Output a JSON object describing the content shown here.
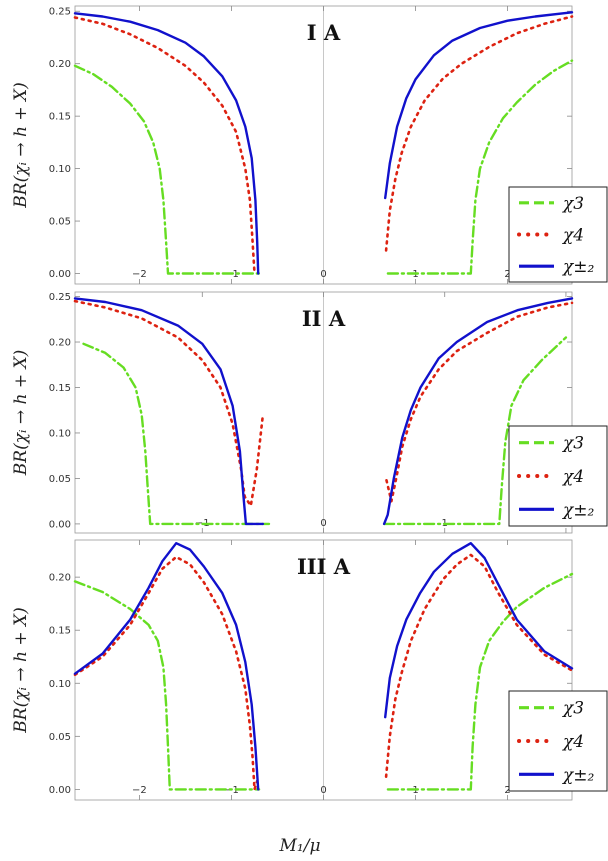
{
  "figure": {
    "xlabel": "M₁/μ",
    "ylabel": "BR(χᵢ → h + X)"
  },
  "legend": [
    {
      "label": "χ3",
      "color": "#66dd22",
      "style": "dashed"
    },
    {
      "label": "χ4",
      "color": "#dd2211",
      "style": "dotted"
    },
    {
      "label": "χ±₂",
      "color": "#1111cc",
      "style": "solid"
    }
  ],
  "chart_data": [
    {
      "type": "line",
      "title": "I A",
      "xlim": [
        -2.7,
        2.7
      ],
      "ylim": [
        -0.01,
        0.255
      ],
      "xticks": [
        -2,
        -1,
        0,
        1,
        2
      ],
      "xtick_labels": [
        "−2",
        "−1",
        "0",
        "1",
        "2"
      ],
      "yticks": [
        0.0,
        0.05,
        0.1,
        0.15,
        0.2,
        0.25
      ],
      "ytick_labels": [
        "0.00",
        "0.05",
        "0.10",
        "0.15",
        "0.20",
        "0.25"
      ],
      "series": [
        {
          "name": "χ3",
          "color": "#66dd22",
          "dash": "10,4,2,4",
          "segments": [
            [
              [
                -2.7,
                0.198
              ],
              [
                -2.5,
                0.19
              ],
              [
                -2.3,
                0.178
              ],
              [
                -2.1,
                0.162
              ],
              [
                -1.95,
                0.145
              ],
              [
                -1.85,
                0.125
              ],
              [
                -1.78,
                0.1
              ],
              [
                -1.74,
                0.07
              ],
              [
                -1.71,
                0.03
              ],
              [
                -1.69,
                0.0
              ],
              [
                -0.7,
                0.0
              ]
            ],
            [
              [
                0.7,
                0.0
              ],
              [
                1.6,
                0.0
              ],
              [
                1.62,
                0.03
              ],
              [
                1.65,
                0.07
              ],
              [
                1.7,
                0.1
              ],
              [
                1.8,
                0.125
              ],
              [
                1.95,
                0.148
              ],
              [
                2.1,
                0.163
              ],
              [
                2.3,
                0.18
              ],
              [
                2.5,
                0.193
              ],
              [
                2.7,
                0.203
              ]
            ]
          ]
        },
        {
          "name": "χ4",
          "color": "#dd2211",
          "dash": "2,5",
          "segments": [
            [
              [
                -2.7,
                0.244
              ],
              [
                -2.4,
                0.238
              ],
              [
                -2.1,
                0.228
              ],
              [
                -1.8,
                0.215
              ],
              [
                -1.5,
                0.198
              ],
              [
                -1.3,
                0.182
              ],
              [
                -1.1,
                0.16
              ],
              [
                -0.95,
                0.135
              ],
              [
                -0.85,
                0.1
              ],
              [
                -0.8,
                0.07
              ],
              [
                -0.77,
                0.03
              ],
              [
                -0.75,
                0.0
              ]
            ],
            [
              [
                0.68,
                0.022
              ],
              [
                0.72,
                0.06
              ],
              [
                0.78,
                0.09
              ],
              [
                0.85,
                0.115
              ],
              [
                0.95,
                0.14
              ],
              [
                1.1,
                0.165
              ],
              [
                1.3,
                0.186
              ],
              [
                1.5,
                0.2
              ],
              [
                1.8,
                0.216
              ],
              [
                2.1,
                0.229
              ],
              [
                2.4,
                0.238
              ],
              [
                2.7,
                0.245
              ]
            ]
          ]
        },
        {
          "name": "χ±₂",
          "color": "#1111cc",
          "dash": "",
          "segments": [
            [
              [
                -2.7,
                0.248
              ],
              [
                -2.4,
                0.245
              ],
              [
                -2.1,
                0.24
              ],
              [
                -1.8,
                0.232
              ],
              [
                -1.5,
                0.22
              ],
              [
                -1.3,
                0.207
              ],
              [
                -1.1,
                0.188
              ],
              [
                -0.95,
                0.165
              ],
              [
                -0.85,
                0.14
              ],
              [
                -0.78,
                0.11
              ],
              [
                -0.74,
                0.07
              ],
              [
                -0.72,
                0.03
              ],
              [
                -0.71,
                0.0
              ]
            ],
            [
              [
                0.67,
                0.072
              ],
              [
                0.72,
                0.105
              ],
              [
                0.8,
                0.14
              ],
              [
                0.9,
                0.167
              ],
              [
                1.0,
                0.185
              ],
              [
                1.2,
                0.208
              ],
              [
                1.4,
                0.222
              ],
              [
                1.7,
                0.234
              ],
              [
                2.0,
                0.241
              ],
              [
                2.3,
                0.245
              ],
              [
                2.7,
                0.249
              ]
            ]
          ]
        }
      ]
    },
    {
      "type": "line",
      "title": "II A",
      "xlim": [
        -2.05,
        2.05
      ],
      "ylim": [
        -0.01,
        0.255
      ],
      "xticks": [
        -1,
        0,
        1,
        2
      ],
      "xtick_labels": [
        "−1",
        "0",
        "1",
        "2"
      ],
      "yticks": [
        0.0,
        0.05,
        0.1,
        0.15,
        0.2,
        0.25
      ],
      "ytick_labels": [
        "0.00",
        "0.05",
        "0.10",
        "0.15",
        "0.20",
        "0.25"
      ],
      "series": [
        {
          "name": "χ3",
          "color": "#66dd22",
          "dash": "10,4,2,4",
          "segments": [
            [
              [
                -1.98,
                0.198
              ],
              [
                -1.8,
                0.188
              ],
              [
                -1.65,
                0.172
              ],
              [
                -1.55,
                0.15
              ],
              [
                -1.5,
                0.12
              ],
              [
                -1.47,
                0.08
              ],
              [
                -1.45,
                0.04
              ],
              [
                -1.43,
                0.0
              ],
              [
                -0.45,
                0.0
              ]
            ],
            [
              [
                0.5,
                0.0
              ],
              [
                1.45,
                0.0
              ],
              [
                1.47,
                0.04
              ],
              [
                1.5,
                0.09
              ],
              [
                1.55,
                0.13
              ],
              [
                1.65,
                0.158
              ],
              [
                1.8,
                0.18
              ],
              [
                2.0,
                0.205
              ]
            ]
          ]
        },
        {
          "name": "χ4",
          "color": "#dd2211",
          "dash": "2,5",
          "segments": [
            [
              [
                -2.05,
                0.245
              ],
              [
                -1.8,
                0.238
              ],
              [
                -1.5,
                0.226
              ],
              [
                -1.2,
                0.205
              ],
              [
                -1.0,
                0.18
              ],
              [
                -0.85,
                0.15
              ],
              [
                -0.75,
                0.11
              ],
              [
                -0.68,
                0.06
              ],
              [
                -0.65,
                0.03
              ],
              [
                -0.6,
                0.02
              ],
              [
                -0.55,
                0.06
              ],
              [
                -0.5,
                0.12
              ]
            ],
            [
              [
                0.52,
                0.048
              ],
              [
                0.56,
                0.025
              ],
              [
                0.6,
                0.05
              ],
              [
                0.65,
                0.085
              ],
              [
                0.72,
                0.115
              ],
              [
                0.8,
                0.14
              ],
              [
                0.95,
                0.17
              ],
              [
                1.1,
                0.19
              ],
              [
                1.35,
                0.21
              ],
              [
                1.6,
                0.228
              ],
              [
                1.85,
                0.238
              ],
              [
                2.05,
                0.243
              ]
            ]
          ]
        },
        {
          "name": "χ±₂",
          "color": "#1111cc",
          "dash": "",
          "segments": [
            [
              [
                -2.05,
                0.248
              ],
              [
                -1.8,
                0.244
              ],
              [
                -1.5,
                0.235
              ],
              [
                -1.2,
                0.218
              ],
              [
                -1.0,
                0.198
              ],
              [
                -0.85,
                0.17
              ],
              [
                -0.75,
                0.13
              ],
              [
                -0.69,
                0.08
              ],
              [
                -0.66,
                0.03
              ],
              [
                -0.64,
                0.0
              ],
              [
                -0.5,
                0.0
              ]
            ],
            [
              [
                0.5,
                0.0
              ],
              [
                0.53,
                0.01
              ],
              [
                0.58,
                0.05
              ],
              [
                0.65,
                0.095
              ],
              [
                0.72,
                0.125
              ],
              [
                0.8,
                0.15
              ],
              [
                0.95,
                0.182
              ],
              [
                1.1,
                0.2
              ],
              [
                1.35,
                0.222
              ],
              [
                1.6,
                0.235
              ],
              [
                1.85,
                0.243
              ],
              [
                2.05,
                0.248
              ]
            ]
          ]
        }
      ]
    },
    {
      "type": "line",
      "title": "III A",
      "xlim": [
        -2.7,
        2.7
      ],
      "ylim": [
        -0.01,
        0.235
      ],
      "xticks": [
        -2,
        -1,
        0,
        1,
        2
      ],
      "xtick_labels": [
        "−2",
        "−1",
        "0",
        "1",
        "2"
      ],
      "yticks": [
        0.0,
        0.05,
        0.1,
        0.15,
        0.2
      ],
      "ytick_labels": [
        "0.00",
        "0.05",
        "0.10",
        "0.15",
        "0.20"
      ],
      "series": [
        {
          "name": "χ3",
          "color": "#66dd22",
          "dash": "10,4,2,4",
          "segments": [
            [
              [
                -2.7,
                0.196
              ],
              [
                -2.4,
                0.186
              ],
              [
                -2.1,
                0.17
              ],
              [
                -1.9,
                0.155
              ],
              [
                -1.8,
                0.14
              ],
              [
                -1.74,
                0.115
              ],
              [
                -1.71,
                0.08
              ],
              [
                -1.69,
                0.04
              ],
              [
                -1.67,
                0.0
              ],
              [
                -0.7,
                0.0
              ]
            ],
            [
              [
                0.7,
                0.0
              ],
              [
                1.6,
                0.0
              ],
              [
                1.62,
                0.04
              ],
              [
                1.65,
                0.08
              ],
              [
                1.7,
                0.115
              ],
              [
                1.8,
                0.14
              ],
              [
                1.95,
                0.158
              ],
              [
                2.1,
                0.172
              ],
              [
                2.4,
                0.19
              ],
              [
                2.7,
                0.203
              ]
            ]
          ]
        },
        {
          "name": "χ4",
          "color": "#dd2211",
          "dash": "2,5",
          "segments": [
            [
              [
                -2.7,
                0.108
              ],
              [
                -2.4,
                0.125
              ],
              [
                -2.1,
                0.155
              ],
              [
                -1.9,
                0.185
              ],
              [
                -1.75,
                0.208
              ],
              [
                -1.6,
                0.219
              ],
              [
                -1.45,
                0.212
              ],
              [
                -1.3,
                0.195
              ],
              [
                -1.1,
                0.165
              ],
              [
                -0.95,
                0.13
              ],
              [
                -0.85,
                0.095
              ],
              [
                -0.8,
                0.06
              ],
              [
                -0.77,
                0.03
              ],
              [
                -0.75,
                0.0
              ],
              [
                -0.72,
                0.008
              ]
            ],
            [
              [
                0.68,
                0.012
              ],
              [
                0.72,
                0.05
              ],
              [
                0.78,
                0.085
              ],
              [
                0.85,
                0.11
              ],
              [
                0.95,
                0.14
              ],
              [
                1.1,
                0.17
              ],
              [
                1.3,
                0.198
              ],
              [
                1.45,
                0.212
              ],
              [
                1.6,
                0.221
              ],
              [
                1.75,
                0.21
              ],
              [
                1.9,
                0.185
              ],
              [
                2.1,
                0.155
              ],
              [
                2.4,
                0.127
              ],
              [
                2.7,
                0.112
              ]
            ]
          ]
        },
        {
          "name": "χ±₂",
          "color": "#1111cc",
          "dash": "",
          "segments": [
            [
              [
                -2.7,
                0.109
              ],
              [
                -2.4,
                0.128
              ],
              [
                -2.1,
                0.16
              ],
              [
                -1.9,
                0.19
              ],
              [
                -1.75,
                0.215
              ],
              [
                -1.6,
                0.232
              ],
              [
                -1.45,
                0.226
              ],
              [
                -1.3,
                0.21
              ],
              [
                -1.1,
                0.185
              ],
              [
                -0.95,
                0.155
              ],
              [
                -0.85,
                0.12
              ],
              [
                -0.78,
                0.08
              ],
              [
                -0.74,
                0.04
              ],
              [
                -0.71,
                0.0
              ]
            ],
            [
              [
                0.67,
                0.068
              ],
              [
                0.72,
                0.105
              ],
              [
                0.8,
                0.135
              ],
              [
                0.9,
                0.16
              ],
              [
                1.05,
                0.185
              ],
              [
                1.2,
                0.205
              ],
              [
                1.4,
                0.222
              ],
              [
                1.6,
                0.232
              ],
              [
                1.75,
                0.218
              ],
              [
                1.9,
                0.193
              ],
              [
                2.1,
                0.16
              ],
              [
                2.4,
                0.13
              ],
              [
                2.7,
                0.114
              ]
            ]
          ]
        }
      ]
    }
  ]
}
